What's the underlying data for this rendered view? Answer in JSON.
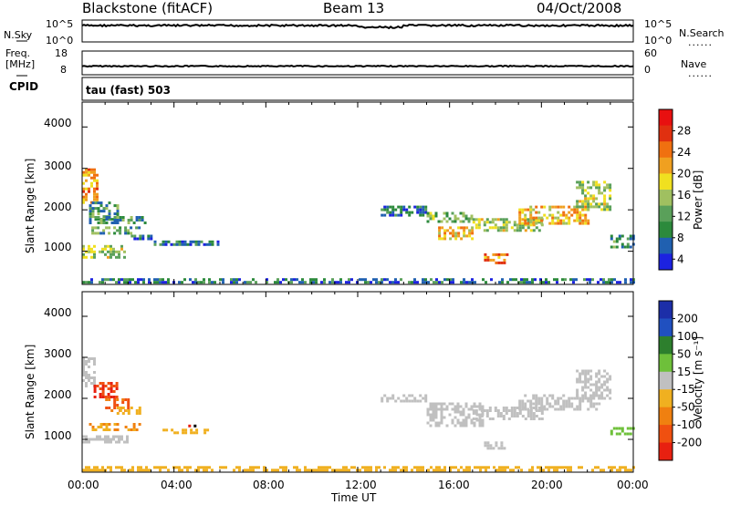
{
  "header": {
    "station": "Blackstone (fitACF)",
    "beam": "Beam 13",
    "date": "04/Oct/2008"
  },
  "strip_panels": {
    "nsky_label": "N.Sky",
    "nsky_ticks": [
      "10^5",
      "10^0"
    ],
    "nsearch_label": "N.Search",
    "nsearch_ticks": [
      "10^5",
      "10^0"
    ],
    "freq_label": "Freq.",
    "freq_unit": "[MHz]",
    "freq_ticks": [
      "18",
      "8"
    ],
    "nave_label": "Nave",
    "nave_ticks": [
      "60",
      "0"
    ],
    "cpid_label": "CPID",
    "cpid_text": "tau (fast) 503",
    "dotted_legend": "......"
  },
  "colors": {
    "power_scale": [
      "#1c22e0",
      "#2060b0",
      "#2c8a3c",
      "#5aa05a",
      "#a0c060",
      "#f0e020",
      "#f0a020",
      "#f07010",
      "#e03010",
      "#e81010"
    ],
    "velocity_scale": [
      "#1c2ea8",
      "#2050c0",
      "#2d7f2d",
      "#6ec03a",
      "#c0c0c0",
      "#f0b020",
      "#f08010",
      "#f05010",
      "#e82010"
    ]
  },
  "chart_data": [
    {
      "type": "heatmap",
      "title": "Power",
      "ylabel": "Slant Range [km]",
      "xlabel": "Time UT",
      "xticks": [
        "00:00",
        "04:00",
        "08:00",
        "12:00",
        "16:00",
        "20:00",
        "00:00"
      ],
      "yticks": [
        "4000",
        "3000",
        "2000",
        "1000"
      ],
      "ylim": [
        200,
        4600
      ],
      "colorbar_label": "Power [dB]",
      "colorbar_ticks": [
        "28",
        "24",
        "20",
        "16",
        "12",
        "8",
        "4"
      ],
      "colorbar_range": [
        0,
        30
      ],
      "series": [
        {
          "name": "",
          "patches": [
            [
              0.0,
              0.6,
              2200,
              3000,
              20
            ],
            [
              0.3,
              1.5,
              1800,
              2200,
              8
            ],
            [
              0.4,
              2.5,
              1450,
              1600,
              10
            ],
            [
              0.3,
              2.8,
              1700,
              1850,
              8
            ],
            [
              0.0,
              1.8,
              850,
              1150,
              14
            ],
            [
              2.0,
              3.0,
              1300,
              1400,
              6
            ],
            [
              3.0,
              6.0,
              1180,
              1260,
              6
            ],
            [
              13.0,
              15.0,
              1900,
              2100,
              6
            ],
            [
              15.0,
              17.0,
              1750,
              1950,
              12
            ],
            [
              15.5,
              17.0,
              1300,
              1600,
              18
            ],
            [
              17.0,
              20.0,
              1500,
              1800,
              14
            ],
            [
              17.5,
              18.5,
              750,
              950,
              22
            ],
            [
              19.0,
              22.0,
              1700,
              2100,
              18
            ],
            [
              21.5,
              23.0,
              2000,
              2700,
              14
            ],
            [
              23.0,
              24.0,
              1100,
              1400,
              8
            ],
            [
              0.0,
              24.0,
              250,
              350,
              6
            ]
          ]
        }
      ]
    },
    {
      "type": "heatmap",
      "title": "Velocity",
      "ylabel": "Slant Range [km]",
      "xlabel": "Time UT",
      "xticks": [
        "00:00",
        "04:00",
        "08:00",
        "12:00",
        "16:00",
        "20:00",
        "00:00"
      ],
      "yticks": [
        "4000",
        "3000",
        "2000",
        "1000"
      ],
      "ylim": [
        200,
        4600
      ],
      "colorbar_label": "Velocity [m s⁻¹]",
      "colorbar_ticks": [
        "200",
        "100",
        "50",
        "15",
        "-15",
        "-50",
        "-100",
        "-200"
      ],
      "colorbar_range": [
        -250,
        250
      ],
      "series": [
        {
          "name": "",
          "patches": [
            [
              0.0,
              0.5,
              2300,
              3000,
              0
            ],
            [
              0.5,
              1.5,
              2000,
              2400,
              -200
            ],
            [
              1.0,
              2.0,
              1700,
              2000,
              -150
            ],
            [
              1.5,
              2.5,
              1600,
              1800,
              -60
            ],
            [
              0.3,
              2.5,
              1250,
              1400,
              -80
            ],
            [
              0.0,
              2.0,
              900,
              1100,
              0
            ],
            [
              3.5,
              5.5,
              1180,
              1260,
              -60
            ],
            [
              4.5,
              4.9,
              1300,
              1360,
              -250
            ],
            [
              13.0,
              15.0,
              1900,
              2100,
              0
            ],
            [
              15.0,
              17.5,
              1300,
              1900,
              0
            ],
            [
              17.0,
              20.0,
              1500,
              1800,
              0
            ],
            [
              17.5,
              18.5,
              750,
              950,
              0
            ],
            [
              19.0,
              22.5,
              1700,
              2100,
              0
            ],
            [
              21.5,
              23.0,
              2000,
              2700,
              0
            ],
            [
              23.0,
              24.0,
              1100,
              1300,
              60
            ],
            [
              0.0,
              24.0,
              250,
              350,
              -50
            ]
          ]
        }
      ]
    }
  ]
}
